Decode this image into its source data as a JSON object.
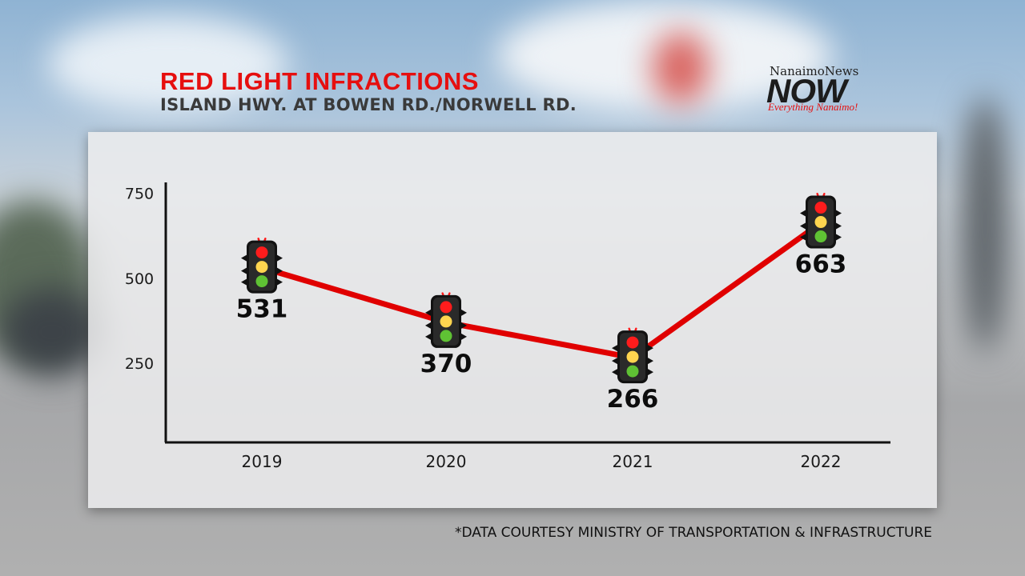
{
  "header": {
    "title": "RED LIGHT INFRACTIONS",
    "subtitle": "ISLAND HWY. AT BOWEN RD./NORWELL RD."
  },
  "logo": {
    "top": "NanaimoNews",
    "main": "NOW",
    "tagline": "Everything Nanaimo!"
  },
  "footnote": "*DATA COURTESY MINISTRY OF TRANSPORTATION & INFRASTRUCTURE",
  "colors": {
    "accent": "#e60f0f",
    "line": "#e00000",
    "axis": "#111111"
  },
  "chart_data": {
    "type": "line",
    "title": "RED LIGHT INFRACTIONS",
    "subtitle": "ISLAND HWY. AT BOWEN RD./NORWELL RD.",
    "categories": [
      "2019",
      "2020",
      "2021",
      "2022"
    ],
    "series": [
      {
        "name": "Red light infractions",
        "values": [
          531,
          370,
          266,
          663
        ]
      }
    ],
    "yticks": [
      250,
      500,
      750
    ],
    "ylim": [
      0,
      750
    ],
    "xlabel": "",
    "ylabel": "",
    "grid": false,
    "marker": "traffic-light"
  }
}
